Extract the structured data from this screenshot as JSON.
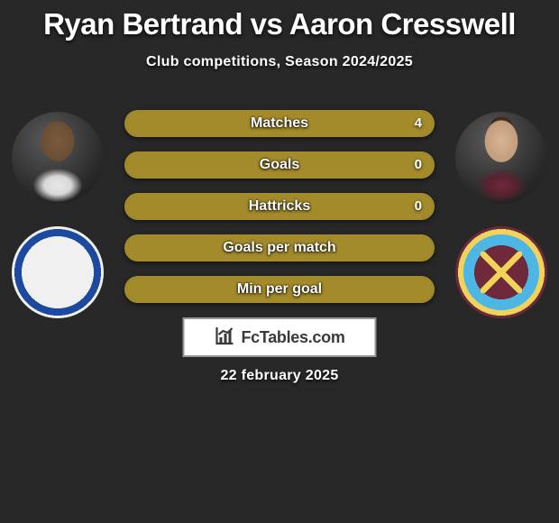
{
  "title": "Ryan Bertrand vs Aaron Cresswell",
  "subtitle": "Club competitions, Season 2024/2025",
  "date": "22 february 2025",
  "brand": "FcTables.com",
  "colors": {
    "bar_border": "#a38a2a",
    "bar_fill": "#a38a2a",
    "bar_bg": "#7a6a24",
    "brand_border": "#969696"
  },
  "stats": [
    {
      "label": "Matches",
      "value": "4",
      "fill_pct": 100
    },
    {
      "label": "Goals",
      "value": "0",
      "fill_pct": 100
    },
    {
      "label": "Hattricks",
      "value": "0",
      "fill_pct": 100
    },
    {
      "label": "Goals per match",
      "value": "",
      "fill_pct": 100
    },
    {
      "label": "Min per goal",
      "value": "",
      "fill_pct": 100
    }
  ]
}
